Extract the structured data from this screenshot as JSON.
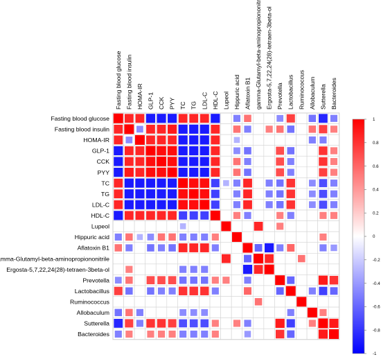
{
  "chart_data": {
    "type": "heatmap",
    "title": "",
    "variables": [
      "Fasting blood glucose",
      "Fasting blood insulin",
      "HOMA-IR",
      "GLP-1",
      "CCK",
      "PYY",
      "TC",
      "TG",
      "LDL-C",
      "HDL-C",
      "Lupeol",
      "Hippuric acid",
      "Aflatoxin B1",
      "gamma-Glutamyl-beta-aminopropiononitrile",
      "Ergosta-5,7,22,24(28)-tetraen-3beta-ol",
      "Prevotella",
      "Lactobacillus",
      "Ruminococcus",
      "Allobaculum",
      "Sutterella",
      "Bacteroides"
    ],
    "values": [
      [
        1.0,
        0.85,
        0.85,
        -0.9,
        -0.9,
        -0.9,
        0.85,
        0.85,
        0.85,
        -0.9,
        0,
        -0.5,
        0.55,
        0,
        0,
        -0.45,
        0.75,
        0,
        -0.55,
        -0.85,
        -0.5
      ],
      [
        0.85,
        1.0,
        -0.45,
        0.85,
        0.85,
        0.9,
        -0.9,
        -0.9,
        -0.9,
        0.85,
        0,
        0.55,
        -0.5,
        0,
        0.5,
        0.55,
        -0.55,
        0,
        0.55,
        0.75,
        0.5
      ],
      [
        0.85,
        -0.45,
        1.0,
        0.85,
        0.85,
        0.85,
        -0.9,
        -0.9,
        -0.9,
        0.85,
        0,
        -0.3,
        0,
        0,
        0,
        0,
        0,
        0,
        -0.5,
        -0.5,
        0
      ],
      [
        -0.9,
        0.85,
        0.85,
        1.0,
        0.95,
        0.95,
        -0.9,
        -0.9,
        -0.9,
        0.85,
        0,
        -0.45,
        -0.55,
        0,
        0,
        0.7,
        -0.55,
        0,
        0,
        0.8,
        0.5
      ],
      [
        -0.9,
        0.85,
        0.85,
        0.95,
        1.0,
        0.95,
        -0.9,
        -0.9,
        -0.9,
        0.85,
        0,
        0.55,
        -0.5,
        0,
        0,
        0.7,
        -0.5,
        0,
        0,
        0.8,
        0.5
      ],
      [
        -0.9,
        0.9,
        0.85,
        0.95,
        0.95,
        1.0,
        -0.9,
        -0.9,
        -0.9,
        0.85,
        0,
        0.55,
        -0.55,
        0,
        0,
        0.7,
        -0.5,
        0,
        0,
        0.75,
        0.5
      ],
      [
        0.85,
        -0.9,
        -0.9,
        -0.9,
        -0.9,
        -0.9,
        1.0,
        0.95,
        0.95,
        -0.75,
        -0.3,
        -0.5,
        0.85,
        0,
        -0.5,
        -0.55,
        0.8,
        0,
        -0.45,
        -0.7,
        -0.5
      ],
      [
        0.85,
        -0.9,
        -0.9,
        -0.9,
        -0.9,
        -0.9,
        0.95,
        1.0,
        0.95,
        -0.75,
        0,
        -0.5,
        0.85,
        0,
        -0.5,
        -0.55,
        0.8,
        0,
        -0.45,
        -0.7,
        -0.5
      ],
      [
        0.85,
        -0.9,
        -0.9,
        -0.9,
        -0.9,
        -0.9,
        0.95,
        0.95,
        1.0,
        -0.75,
        0,
        -0.5,
        0.85,
        0,
        -0.5,
        -0.55,
        0.8,
        0,
        -0.45,
        -0.7,
        -0.5
      ],
      [
        -0.9,
        0.85,
        0.85,
        0.85,
        0.85,
        0.85,
        -0.75,
        -0.75,
        -0.75,
        1.0,
        0,
        0.5,
        -0.5,
        0,
        0,
        0.5,
        -0.5,
        0,
        0,
        0.5,
        0.5
      ],
      [
        0,
        0,
        0,
        0,
        0,
        0,
        -0.3,
        0,
        0,
        0,
        1.0,
        0,
        0,
        0.85,
        0,
        0.5,
        0,
        0,
        0,
        0,
        0
      ],
      [
        -0.5,
        0.55,
        -0.3,
        -0.45,
        0.55,
        0.55,
        -0.5,
        -0.5,
        -0.5,
        0.5,
        0,
        1.0,
        0,
        0,
        0,
        0,
        0,
        0,
        0,
        0.5,
        0
      ],
      [
        0.55,
        -0.5,
        0,
        -0.55,
        -0.5,
        -0.55,
        0.85,
        0.85,
        0.85,
        -0.5,
        0,
        0,
        1.0,
        -0.6,
        -0.9,
        -0.5,
        0.6,
        0,
        0,
        -0.5,
        -0.4
      ],
      [
        0,
        0,
        0,
        0,
        0,
        0,
        0,
        0,
        0,
        0,
        0.85,
        0,
        -0.6,
        1.0,
        0.85,
        0,
        0,
        0.55,
        0,
        0,
        0
      ],
      [
        0,
        0.5,
        0,
        0,
        0,
        0,
        -0.5,
        -0.5,
        -0.5,
        0,
        0,
        0,
        -0.9,
        0.85,
        1.0,
        0,
        0,
        0,
        0,
        0,
        0
      ],
      [
        -0.45,
        0.55,
        0,
        0.7,
        0.7,
        0.7,
        -0.55,
        -0.55,
        -0.55,
        0.5,
        0.5,
        0,
        -0.5,
        0,
        0,
        1.0,
        -0.6,
        0,
        0,
        0.9,
        0.8
      ],
      [
        0.75,
        -0.55,
        0,
        -0.55,
        -0.5,
        -0.5,
        0.8,
        0.8,
        0.8,
        -0.5,
        0,
        0,
        0.6,
        0,
        0,
        -0.6,
        1.0,
        0,
        -0.5,
        -0.75,
        -0.6
      ],
      [
        0,
        0,
        0,
        0,
        0,
        0,
        0,
        0,
        0,
        0,
        0,
        0,
        0,
        0.55,
        0,
        0,
        0,
        1.0,
        0,
        0,
        0
      ],
      [
        -0.55,
        0.55,
        -0.5,
        0,
        0,
        0,
        -0.45,
        -0.45,
        -0.45,
        0,
        0,
        0,
        0,
        0,
        0,
        0,
        -0.5,
        0,
        1.0,
        0.5,
        0
      ],
      [
        -0.85,
        0.75,
        -0.5,
        0.8,
        0.8,
        0.75,
        -0.7,
        -0.7,
        -0.7,
        0.5,
        0,
        0.5,
        -0.5,
        0,
        0,
        0.9,
        -0.75,
        0,
        0.5,
        1.0,
        0.9
      ],
      [
        -0.5,
        0.5,
        0,
        0.5,
        0.5,
        0.5,
        -0.5,
        -0.5,
        -0.5,
        0.5,
        0,
        0,
        -0.4,
        0,
        0,
        0.8,
        -0.6,
        0,
        0,
        0.9,
        1.0
      ]
    ],
    "colorbar": {
      "min": -1,
      "max": 1,
      "ticks": [
        1,
        0.8,
        0.6,
        0.4,
        0.2,
        0,
        -0.2,
        -0.4,
        -0.6,
        -0.8,
        -1
      ],
      "low_color": "#0000ff",
      "mid_color": "#ffffff",
      "high_color": "#ff0000"
    },
    "grid": true,
    "legend_position": "right"
  }
}
